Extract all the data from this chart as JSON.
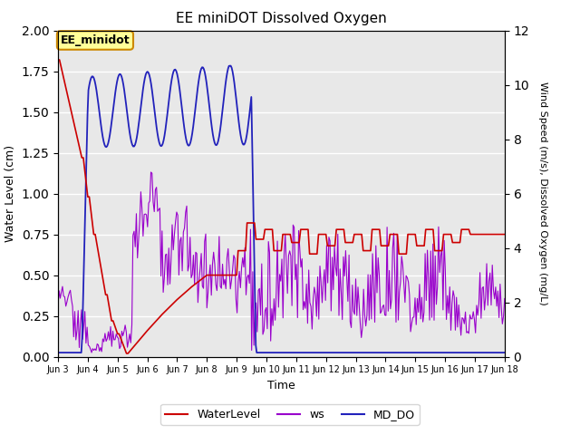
{
  "title": "EE miniDOT Dissolved Oxygen",
  "xlabel": "Time",
  "ylabel_left": "Water Level (cm)",
  "ylabel_right": "Wind Speed (m/s), Dissolved Oxygen (mg/L)",
  "annotation": "EE_minidot",
  "left_ylim": [
    0.0,
    2.0
  ],
  "right_ylim": [
    0,
    12
  ],
  "x_tick_labels": [
    "Jun 3",
    "Jun 4",
    "Jun 5",
    "Jun 6",
    "Jun 7",
    "Jun 8",
    "Jun 9",
    "Jun 10",
    "Jun 11",
    "Jun 12",
    "Jun 13",
    "Jun 14",
    "Jun 15",
    "Jun 16",
    "Jun 17",
    "Jun 18"
  ],
  "colors": {
    "WaterLevel": "#cc0000",
    "ws": "#9900cc",
    "MD_DO": "#2222bb"
  },
  "bg_color": "#e8e8e8",
  "annotation_bg": "#ffff99",
  "annotation_border": "#cc8800"
}
